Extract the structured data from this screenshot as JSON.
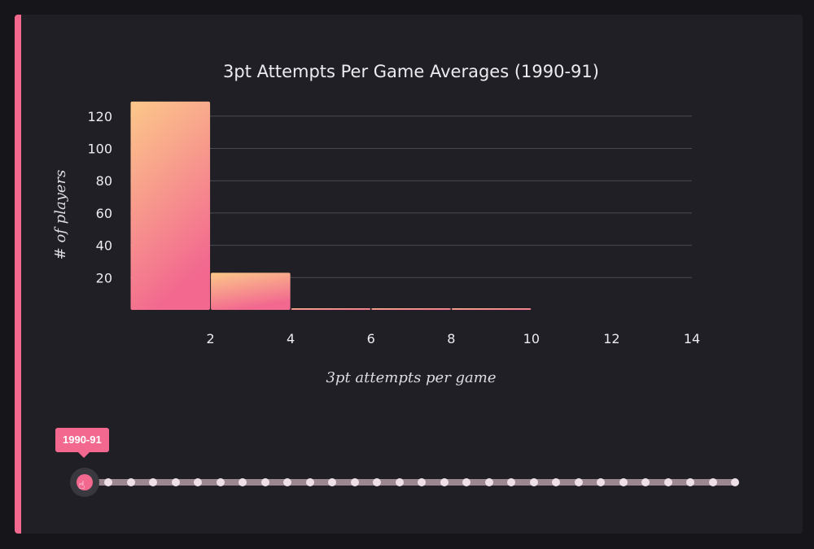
{
  "colors": {
    "accent": "#f2688f",
    "bar_gradient_top": "#fcc88a",
    "bar_gradient_bottom": "#f2688f",
    "background": "#201f25"
  },
  "chart_data": {
    "type": "bar",
    "title": "3pt Attempts Per Game Averages (1990-91)",
    "xlabel": "3pt attempts per game",
    "ylabel": "# of players",
    "x_ticks": [
      2,
      4,
      6,
      8,
      10,
      12,
      14
    ],
    "y_ticks": [
      20,
      40,
      60,
      80,
      100,
      120
    ],
    "xlim": [
      0,
      14
    ],
    "ylim": [
      0,
      130
    ],
    "bins": [
      {
        "x0": 0,
        "x1": 2,
        "value": 129
      },
      {
        "x0": 2,
        "x1": 4,
        "value": 23
      },
      {
        "x0": 4,
        "x1": 6,
        "value": 1
      },
      {
        "x0": 6,
        "x1": 8,
        "value": 1
      },
      {
        "x0": 8,
        "x1": 10,
        "value": 1
      }
    ],
    "grid": "horizontal"
  },
  "slider": {
    "selected_label": "1990-91",
    "selected_index": 0,
    "stop_count": 30,
    "handle_icon": "hand-pointer-icon"
  }
}
